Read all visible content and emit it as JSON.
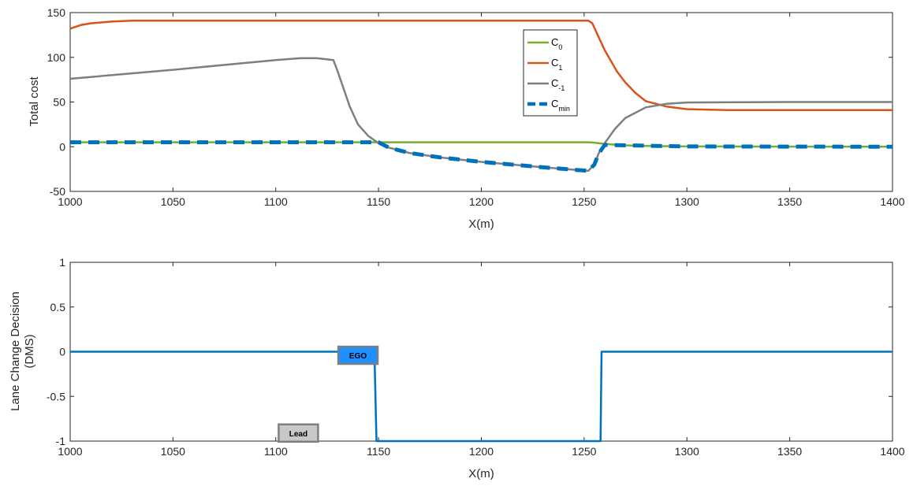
{
  "chart_data": [
    {
      "type": "line",
      "xlabel": "X(m)",
      "ylabel": "Total cost",
      "xlim": [
        1000,
        1400
      ],
      "ylim": [
        -50,
        150
      ],
      "xticks": [
        1000,
        1050,
        1100,
        1150,
        1200,
        1250,
        1300,
        1350,
        1400
      ],
      "yticks": [
        -50,
        0,
        50,
        100,
        150
      ],
      "grid": false,
      "legend_position": "top-center",
      "series": [
        {
          "name": "C0",
          "name_base": "C",
          "name_sub": "0",
          "color": "#77AC30",
          "style": "solid",
          "x": [
            1000,
            1150,
            1252,
            1255,
            1260,
            1270,
            1280,
            1300,
            1350,
            1400
          ],
          "y": [
            5,
            5,
            5,
            4.5,
            3,
            1.5,
            0.8,
            0.3,
            0.1,
            0
          ]
        },
        {
          "name": "C1",
          "name_base": "C",
          "name_sub": "1",
          "color": "#D95319",
          "style": "solid",
          "x": [
            1000,
            1005,
            1010,
            1020,
            1030,
            1050,
            1100,
            1200,
            1252,
            1254,
            1256,
            1258,
            1260,
            1263,
            1266,
            1270,
            1275,
            1280,
            1290,
            1300,
            1320,
            1350,
            1400
          ],
          "y": [
            132,
            136,
            138,
            140,
            141,
            141,
            141,
            141,
            141,
            138,
            128,
            118,
            108,
            96,
            84,
            72,
            60,
            51,
            45,
            42,
            41,
            41,
            41
          ]
        },
        {
          "name": "C-1",
          "name_base": "C",
          "name_sub": "-1",
          "color": "#7F7F7F",
          "style": "solid",
          "x": [
            1000,
            1050,
            1100,
            1112,
            1120,
            1128,
            1130,
            1133,
            1136,
            1140,
            1145,
            1150,
            1155,
            1165,
            1180,
            1200,
            1230,
            1252,
            1255,
            1257,
            1260,
            1265,
            1270,
            1280,
            1290,
            1300,
            1350,
            1400
          ],
          "y": [
            76,
            86,
            97,
            99,
            99,
            97,
            85,
            65,
            45,
            25,
            12,
            4,
            -1,
            -7,
            -12,
            -17,
            -23,
            -27,
            -20,
            -8,
            4,
            20,
            32,
            44,
            48,
            49.5,
            50,
            50
          ]
        },
        {
          "name": "Cmin",
          "name_base": "C",
          "name_sub": "min",
          "color": "#0072BD",
          "style": "dashed",
          "x": [
            1000,
            1100,
            1150,
            1155,
            1165,
            1180,
            1200,
            1230,
            1252,
            1255,
            1257,
            1260,
            1265,
            1270,
            1300,
            1350,
            1400
          ],
          "y": [
            5,
            5,
            5,
            -1,
            -7,
            -12,
            -17,
            -23,
            -27,
            -20,
            -8,
            2,
            1.8,
            1.5,
            0.3,
            0.1,
            0
          ]
        }
      ]
    },
    {
      "type": "line",
      "xlabel": "X(m)",
      "ylabel_line1": "Lane Change Decision",
      "ylabel_line2": "(DMS)",
      "xlim": [
        1000,
        1400
      ],
      "ylim": [
        -1,
        1
      ],
      "xticks": [
        1000,
        1050,
        1100,
        1150,
        1200,
        1250,
        1300,
        1350,
        1400
      ],
      "yticks": [
        -1,
        -0.5,
        0,
        0.5,
        1
      ],
      "ytick_labels": [
        "-1",
        "-0.5",
        "0",
        "0.5",
        "1"
      ],
      "grid": false,
      "series": [
        {
          "color": "#0072BD",
          "style": "solid",
          "x": [
            1000,
            1148,
            1149,
            1258,
            1258.5,
            1400
          ],
          "y": [
            0,
            0,
            -1,
            -1,
            0,
            0
          ]
        }
      ],
      "annotations": [
        {
          "label": "EGO",
          "x_center": 1140,
          "y_center": -0.04,
          "fill": "#1E90FF"
        },
        {
          "label": "Lead",
          "x_center": 1111,
          "y_center": -0.91,
          "fill": "#C8C8C8"
        }
      ]
    }
  ]
}
